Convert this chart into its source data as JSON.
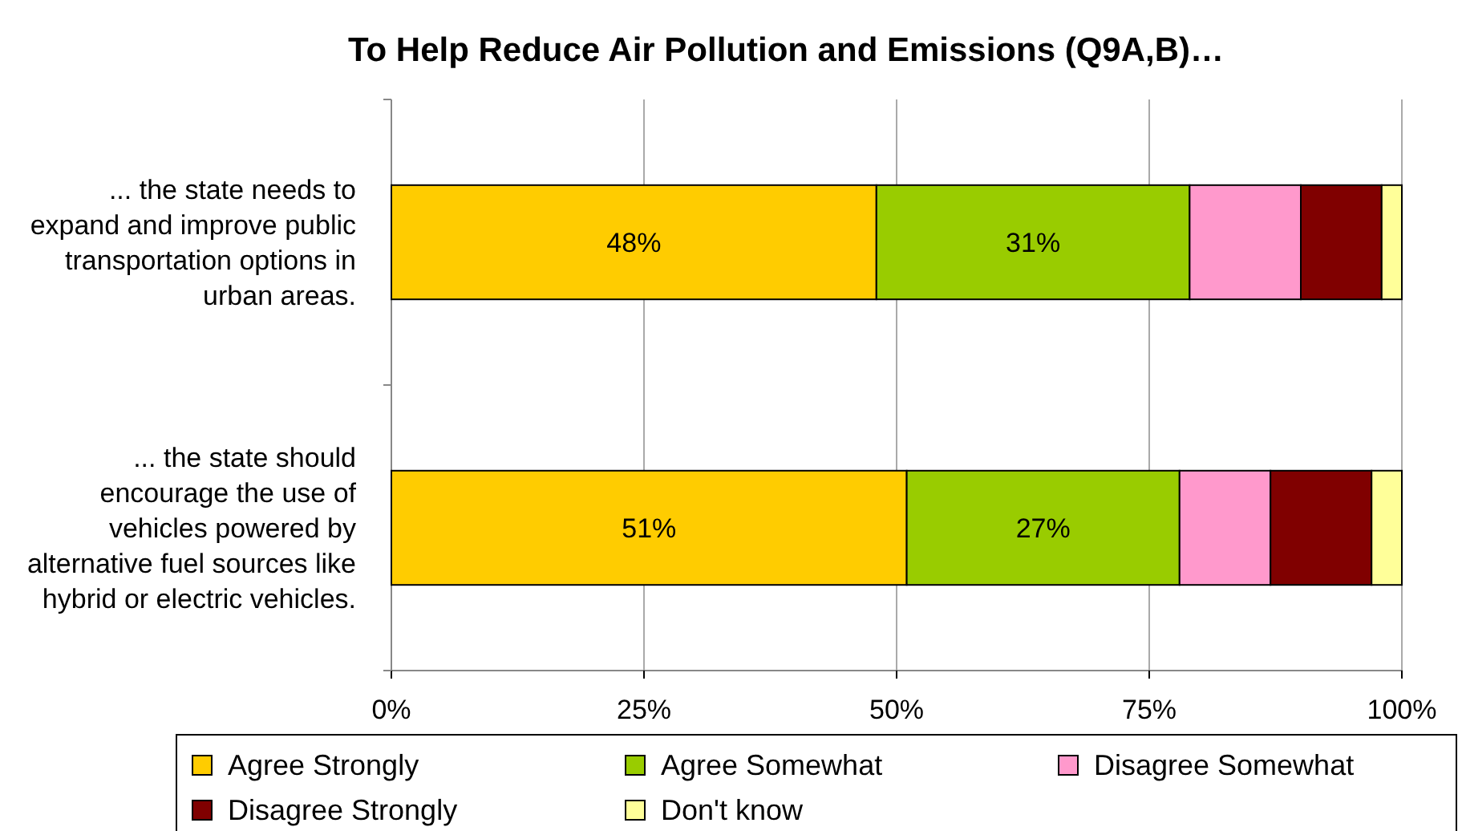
{
  "chart_data": {
    "type": "bar",
    "orientation": "horizontal",
    "stacked": true,
    "title": "To Help Reduce Air Pollution and Emissions (Q9A,B)…",
    "categories": [
      "... the state needs to expand and improve public transportation options in urban areas.",
      "... the state should encourage the use of vehicles powered by alternative fuel sources like hybrid or electric vehicles."
    ],
    "series": [
      {
        "name": "Agree Strongly",
        "color": "#ffcc00",
        "values": [
          48,
          51
        ],
        "value_labels": [
          "48%",
          "51%"
        ]
      },
      {
        "name": "Agree Somewhat",
        "color": "#99cc00",
        "values": [
          31,
          27
        ],
        "value_labels": [
          "31%",
          "27%"
        ]
      },
      {
        "name": "Disagree Somewhat",
        "color": "#ff99cc",
        "values": [
          11,
          9
        ]
      },
      {
        "name": "Disagree Strongly",
        "color": "#800000",
        "values": [
          8,
          10
        ]
      },
      {
        "name": "Don't know",
        "color": "#ffff99",
        "values": [
          2,
          3
        ]
      }
    ],
    "xlim": [
      0,
      100
    ],
    "xticks": [
      {
        "value": 0,
        "label": "0%"
      },
      {
        "value": 25,
        "label": "25%"
      },
      {
        "value": 50,
        "label": "50%"
      },
      {
        "value": 75,
        "label": "75%"
      },
      {
        "value": 100,
        "label": "100%"
      }
    ],
    "grid": "x",
    "legend": "bottom"
  }
}
